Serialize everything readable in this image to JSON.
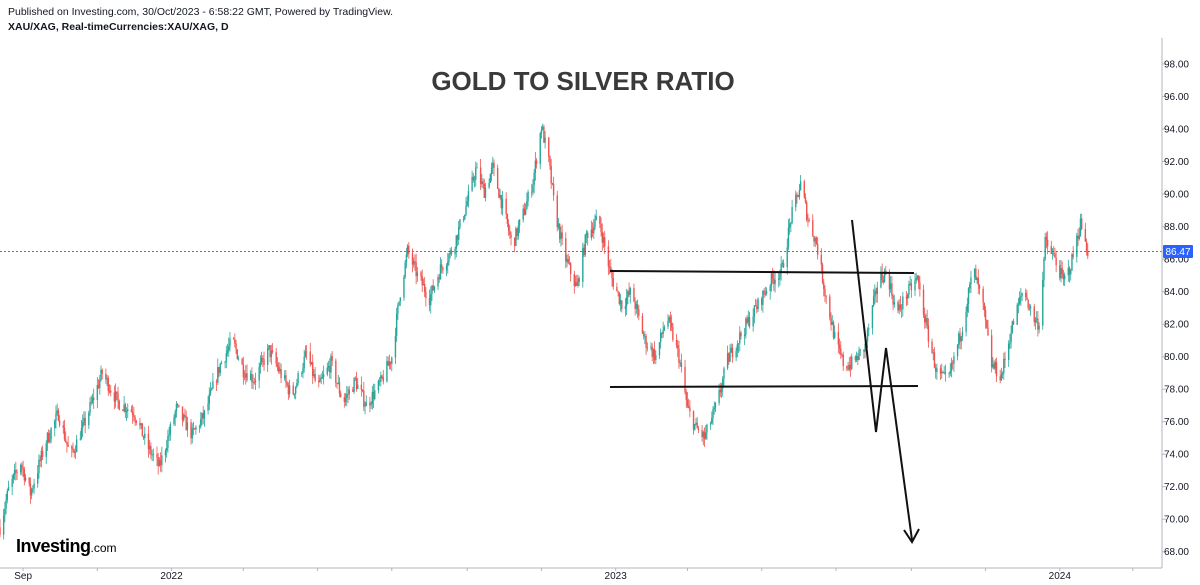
{
  "header": {
    "published": "Published on Investing.com, 30/Oct/2023 - 6:58:22 GMT, Powered by TradingView.",
    "symbol": "XAU/XAG, Real-timeCurrencies:XAU/XAG, D"
  },
  "logo": {
    "main": "Investing",
    "suffix": ".com"
  },
  "colors": {
    "up": "#26a69a",
    "down": "#ef5350",
    "last_price_line": "#2962ff",
    "annotation": "#111111",
    "axis_text": "#131722"
  },
  "chart_data": {
    "type": "candlestick",
    "title": "GOLD TO SILVER RATIO",
    "xlabel": "",
    "ylabel": "",
    "ylim": [
      67,
      99.6
    ],
    "y_ticks": [
      "68.00",
      "70.00",
      "72.00",
      "74.00",
      "76.00",
      "78.00",
      "80.00",
      "82.00",
      "84.00",
      "86.00",
      "88.00",
      "90.00",
      "92.00",
      "94.00",
      "96.00",
      "98.00"
    ],
    "x_range": [
      "2021-08-13",
      "2024-03-25"
    ],
    "x_ticks": [
      {
        "label": "Sep",
        "date": "2021-09-01"
      },
      {
        "label": "",
        "date": "2021-11-01"
      },
      {
        "label": "2022",
        "date": "2022-01-01"
      },
      {
        "label": "",
        "date": "2022-03-01"
      },
      {
        "label": "",
        "date": "2022-05-01"
      },
      {
        "label": "",
        "date": "2022-07-01"
      },
      {
        "label": "",
        "date": "2022-09-01"
      },
      {
        "label": "",
        "date": "2022-11-01"
      },
      {
        "label": "2023",
        "date": "2023-01-01"
      },
      {
        "label": "",
        "date": "2023-03-01"
      },
      {
        "label": "",
        "date": "2023-05-01"
      },
      {
        "label": "",
        "date": "2023-07-01"
      },
      {
        "label": "",
        "date": "2023-09-01"
      },
      {
        "label": "",
        "date": "2023-11-01"
      },
      {
        "label": "2024",
        "date": "2024-01-01"
      },
      {
        "label": "",
        "date": "2024-03-01"
      }
    ],
    "last_price": 86.47,
    "last_price_label": "86.47",
    "grid": false,
    "price_path": [
      [
        "2021-08-13",
        69.5
      ],
      [
        "2021-08-20",
        71.8
      ],
      [
        "2021-08-30",
        73.5
      ],
      [
        "2021-09-07",
        71.6
      ],
      [
        "2021-09-20",
        74.8
      ],
      [
        "2021-09-30",
        76.5
      ],
      [
        "2021-10-10",
        73.8
      ],
      [
        "2021-10-22",
        76.0
      ],
      [
        "2021-11-05",
        79.0
      ],
      [
        "2021-11-18",
        77.2
      ],
      [
        "2021-12-01",
        76.6
      ],
      [
        "2021-12-12",
        74.5
      ],
      [
        "2021-12-22",
        73.2
      ],
      [
        "2022-01-05",
        76.8
      ],
      [
        "2022-01-18",
        75.2
      ],
      [
        "2022-01-28",
        76.4
      ],
      [
        "2022-02-10",
        79.5
      ],
      [
        "2022-02-20",
        81.0
      ],
      [
        "2022-03-01",
        79.2
      ],
      [
        "2022-03-10",
        78.6
      ],
      [
        "2022-03-22",
        80.4
      ],
      [
        "2022-04-01",
        78.9
      ],
      [
        "2022-04-10",
        77.6
      ],
      [
        "2022-04-22",
        80.2
      ],
      [
        "2022-05-01",
        78.0
      ],
      [
        "2022-05-12",
        79.6
      ],
      [
        "2022-05-22",
        77.2
      ],
      [
        "2022-06-01",
        78.5
      ],
      [
        "2022-06-10",
        77.0
      ],
      [
        "2022-06-22",
        78.4
      ],
      [
        "2022-07-01",
        80.0
      ],
      [
        "2022-07-08",
        84.0
      ],
      [
        "2022-07-14",
        86.5
      ],
      [
        "2022-07-22",
        85.0
      ],
      [
        "2022-08-01",
        83.6
      ],
      [
        "2022-08-10",
        85.4
      ],
      [
        "2022-08-20",
        86.6
      ],
      [
        "2022-08-30",
        89.0
      ],
      [
        "2022-09-08",
        91.5
      ],
      [
        "2022-09-15",
        90.2
      ],
      [
        "2022-09-22",
        91.6
      ],
      [
        "2022-10-01",
        89.0
      ],
      [
        "2022-10-08",
        86.8
      ],
      [
        "2022-10-18",
        89.0
      ],
      [
        "2022-10-25",
        90.8
      ],
      [
        "2022-11-01",
        94.2
      ],
      [
        "2022-11-07",
        92.0
      ],
      [
        "2022-11-12",
        89.0
      ],
      [
        "2022-11-20",
        86.2
      ],
      [
        "2022-11-30",
        84.2
      ],
      [
        "2022-12-08",
        87.5
      ],
      [
        "2022-12-18",
        88.5
      ],
      [
        "2022-12-28",
        85.0
      ],
      [
        "2023-01-06",
        83.2
      ],
      [
        "2023-01-14",
        84.0
      ],
      [
        "2023-01-25",
        81.0
      ],
      [
        "2023-02-03",
        80.0
      ],
      [
        "2023-02-12",
        82.5
      ],
      [
        "2023-02-22",
        80.0
      ],
      [
        "2023-03-01",
        76.8
      ],
      [
        "2023-03-08",
        75.6
      ],
      [
        "2023-03-15",
        75.0
      ],
      [
        "2023-03-25",
        77.0
      ],
      [
        "2023-04-03",
        79.8
      ],
      [
        "2023-04-15",
        81.5
      ],
      [
        "2023-04-28",
        83.2
      ],
      [
        "2023-05-08",
        84.6
      ],
      [
        "2023-05-18",
        85.4
      ],
      [
        "2023-05-25",
        88.5
      ],
      [
        "2023-06-02",
        90.6
      ],
      [
        "2023-06-08",
        88.5
      ],
      [
        "2023-06-15",
        87.0
      ],
      [
        "2023-06-22",
        84.0
      ],
      [
        "2023-07-01",
        80.8
      ],
      [
        "2023-07-08",
        79.4
      ],
      [
        "2023-07-15",
        79.6
      ],
      [
        "2023-07-25",
        80.6
      ],
      [
        "2023-08-05",
        84.8
      ],
      [
        "2023-08-12",
        85.2
      ],
      [
        "2023-08-20",
        82.6
      ],
      [
        "2023-08-28",
        83.8
      ],
      [
        "2023-09-06",
        84.8
      ],
      [
        "2023-09-14",
        81.6
      ],
      [
        "2023-09-22",
        79.0
      ],
      [
        "2023-10-01",
        78.4
      ],
      [
        "2023-10-12",
        81.6
      ],
      [
        "2023-10-22",
        85.4
      ],
      [
        "2023-10-30",
        83.0
      ],
      [
        "2023-11-06",
        79.5
      ],
      [
        "2023-11-14",
        78.8
      ],
      [
        "2023-11-22",
        81.6
      ],
      [
        "2023-12-02",
        84.2
      ],
      [
        "2023-12-10",
        82.4
      ],
      [
        "2023-12-15",
        82.0
      ],
      [
        "2023-12-20",
        87.0
      ],
      [
        "2023-12-28",
        86.0
      ],
      [
        "2024-01-04",
        84.6
      ],
      [
        "2024-01-10",
        85.6
      ],
      [
        "2024-01-18",
        88.2
      ],
      [
        "2024-01-24",
        86.5
      ]
    ]
  }
}
